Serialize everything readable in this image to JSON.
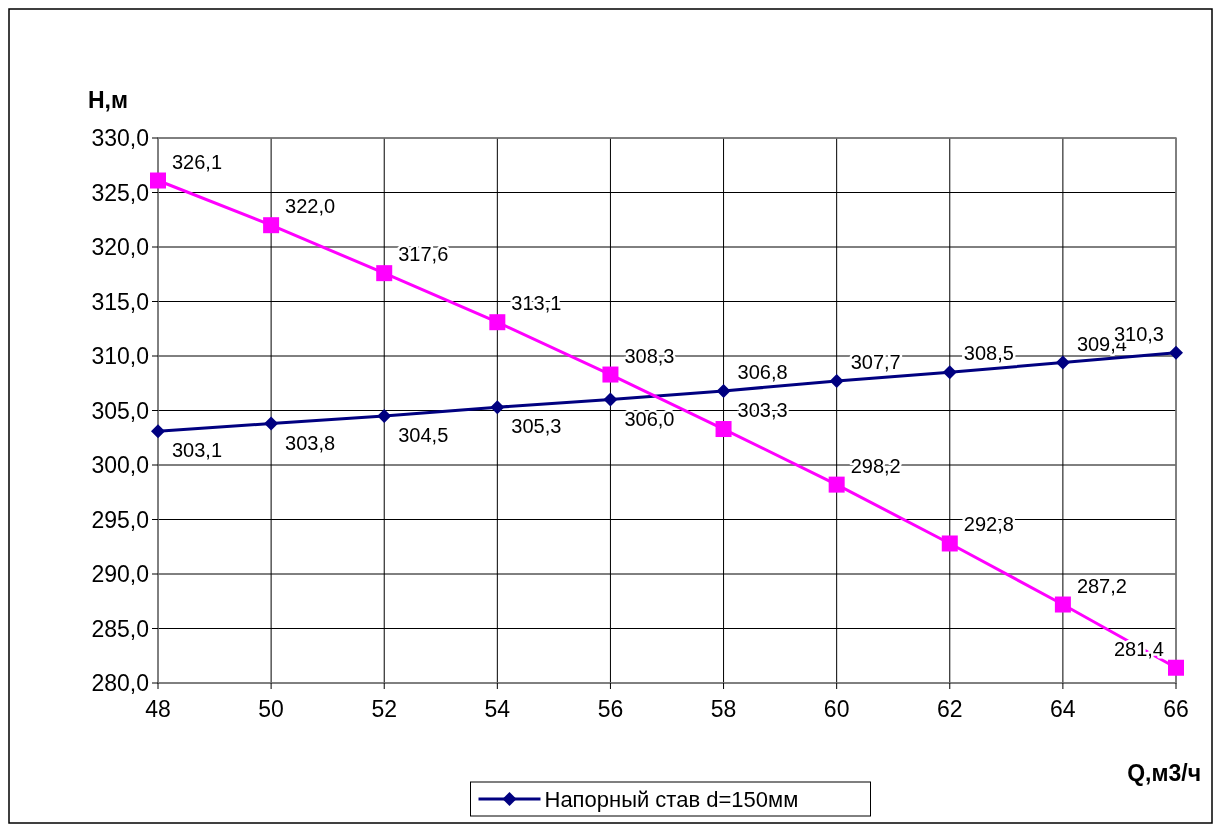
{
  "chart_data": {
    "type": "line",
    "xlabel": "Q,м3/ч",
    "ylabel": "H,м",
    "x": [
      48,
      50,
      52,
      54,
      56,
      58,
      60,
      62,
      64,
      66
    ],
    "xlim": [
      48,
      66
    ],
    "xticks": [
      48,
      50,
      52,
      54,
      56,
      58,
      60,
      62,
      64,
      66
    ],
    "ylim": [
      280,
      330
    ],
    "yticks": [
      {
        "value": 280,
        "label": "280,0"
      },
      {
        "value": 285,
        "label": "285,0"
      },
      {
        "value": 290,
        "label": "290,0"
      },
      {
        "value": 295,
        "label": "295,0"
      },
      {
        "value": 300,
        "label": "300,0"
      },
      {
        "value": 305,
        "label": "305,0"
      },
      {
        "value": 310,
        "label": "310,0"
      },
      {
        "value": 315,
        "label": "315,0"
      },
      {
        "value": 320,
        "label": "320,0"
      },
      {
        "value": 325,
        "label": "325,0"
      },
      {
        "value": 330,
        "label": "330,0"
      }
    ],
    "grid": true,
    "legend": "bottom",
    "series": [
      {
        "name": "Напорный став d=150мм",
        "color": "#000080",
        "marker": "diamond",
        "values": [
          303.1,
          303.8,
          304.5,
          305.3,
          306.0,
          306.8,
          307.7,
          308.5,
          309.4,
          310.3
        ],
        "value_labels": [
          "303,1",
          "303,8",
          "304,5",
          "305,3",
          "306,0",
          "306,8",
          "307,7",
          "308,5",
          "309,4",
          "310,3"
        ]
      },
      {
        "color": "#ff00ff",
        "marker": "square",
        "values": [
          326.1,
          322.0,
          317.6,
          313.1,
          308.3,
          303.3,
          298.2,
          292.8,
          287.2,
          281.4
        ],
        "value_labels": [
          "326,1",
          "322,0",
          "317,6",
          "313,1",
          "308,3",
          "303,3",
          "298,2",
          "292,8",
          "287,2",
          "281,4"
        ]
      }
    ]
  }
}
